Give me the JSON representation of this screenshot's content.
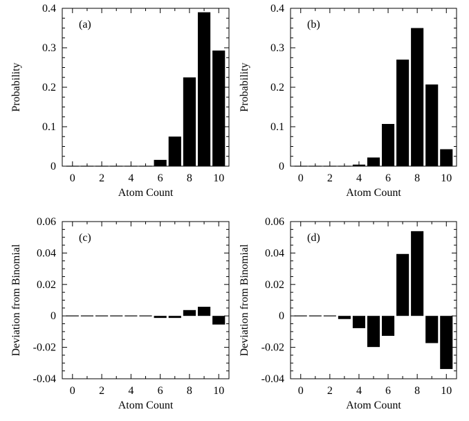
{
  "figure": {
    "xlabel": "Atom Count"
  },
  "chart_data": [
    {
      "type": "bar",
      "panel_label": "(a)",
      "ylabel": "Probability",
      "xlabel": "Atom Count",
      "x": [
        0,
        1,
        2,
        3,
        4,
        5,
        6,
        7,
        8,
        9,
        10
      ],
      "values": [
        0,
        0,
        0,
        0,
        0,
        0.002,
        0.016,
        0.075,
        0.225,
        0.39,
        0.293
      ],
      "xlim": [
        -0.7,
        10.7
      ],
      "ylim": [
        0,
        0.4
      ],
      "xticks": [
        0,
        2,
        4,
        6,
        8,
        10
      ],
      "yticks": [
        0,
        0.1,
        0.2,
        0.3,
        0.4
      ],
      "ytick_labels": [
        "0",
        "0.1",
        "0.2",
        "0.3",
        "0.4"
      ]
    },
    {
      "type": "bar",
      "panel_label": "(b)",
      "ylabel": "Probability",
      "xlabel": "Atom Count",
      "x": [
        0,
        1,
        2,
        3,
        4,
        5,
        6,
        7,
        8,
        9,
        10
      ],
      "values": [
        0,
        0,
        0,
        0,
        0.004,
        0.022,
        0.107,
        0.27,
        0.35,
        0.207,
        0.043
      ],
      "xlim": [
        -0.7,
        10.7
      ],
      "ylim": [
        0,
        0.4
      ],
      "xticks": [
        0,
        2,
        4,
        6,
        8,
        10
      ],
      "yticks": [
        0,
        0.1,
        0.2,
        0.3,
        0.4
      ],
      "ytick_labels": [
        "0",
        "0.1",
        "0.2",
        "0.3",
        "0.4"
      ]
    },
    {
      "type": "bar",
      "panel_label": "(c)",
      "ylabel": "Deviation from Binomial",
      "xlabel": "Atom Count",
      "x": [
        0,
        1,
        2,
        3,
        4,
        5,
        6,
        7,
        8,
        9,
        10
      ],
      "values": [
        0,
        0,
        0,
        0,
        0,
        -0.0003,
        -0.0013,
        -0.0013,
        0.0037,
        0.0058,
        -0.0055
      ],
      "xlim": [
        -0.7,
        10.7
      ],
      "ylim": [
        -0.04,
        0.06
      ],
      "xticks": [
        0,
        2,
        4,
        6,
        8,
        10
      ],
      "yticks": [
        -0.04,
        -0.02,
        0,
        0.02,
        0.04,
        0.06
      ],
      "ytick_labels": [
        "-0.04",
        "-0.02",
        "0",
        "0.02",
        "0.04",
        "0.06"
      ]
    },
    {
      "type": "bar",
      "panel_label": "(d)",
      "ylabel": "Deviation from Binomial",
      "xlabel": "Atom Count",
      "x": [
        0,
        1,
        2,
        3,
        4,
        5,
        6,
        7,
        8,
        9,
        10
      ],
      "values": [
        0,
        0,
        0,
        -0.002,
        -0.0078,
        -0.0198,
        -0.0127,
        0.0394,
        0.0539,
        -0.0173,
        -0.0338
      ],
      "xlim": [
        -0.7,
        10.7
      ],
      "ylim": [
        -0.04,
        0.06
      ],
      "xticks": [
        0,
        2,
        4,
        6,
        8,
        10
      ],
      "yticks": [
        -0.04,
        -0.02,
        0,
        0.02,
        0.04,
        0.06
      ],
      "ytick_labels": [
        "-0.04",
        "-0.02",
        "0",
        "0.02",
        "0.04",
        "0.06"
      ]
    }
  ]
}
